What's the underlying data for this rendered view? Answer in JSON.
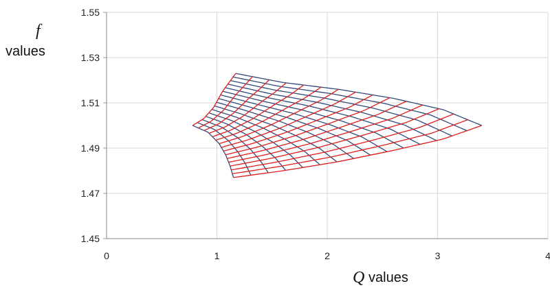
{
  "chart_data": {
    "type": "line",
    "title": "",
    "xlabel": {
      "variable": "Q",
      "text": "values"
    },
    "ylabel": {
      "variable": "f",
      "text": "values"
    },
    "xlim": [
      0,
      4
    ],
    "ylim": [
      1.45,
      1.55
    ],
    "x_ticks": [
      "0",
      "1",
      "2",
      "3",
      "4"
    ],
    "y_ticks": [
      "1.45",
      "1.47",
      "1.49",
      "1.51",
      "1.53",
      "1.55"
    ],
    "grid": true,
    "legend": "none",
    "colors": {
      "blue_family": "#2e4a7a",
      "red_family": "#e01b1b",
      "grid": "#d9d9d9",
      "axis": "#9a9a9a"
    },
    "mesh": {
      "description_of_series": "two families of curves forming a curvilinear mesh",
      "red_boundary_left": [
        [
          1.17,
          1.523
        ],
        [
          1.05,
          1.515
        ],
        [
          0.97,
          1.508
        ],
        [
          0.88,
          1.503
        ],
        [
          0.78,
          1.5
        ]
      ],
      "red_boundary_right": [
        [
          1.15,
          1.477
        ],
        [
          1.6,
          1.48
        ],
        [
          2.1,
          1.484
        ],
        [
          2.6,
          1.489
        ],
        [
          3.05,
          1.494
        ],
        [
          3.4,
          1.5
        ]
      ],
      "blue_boundary_top": [
        [
          1.17,
          1.523
        ],
        [
          1.6,
          1.519
        ],
        [
          2.1,
          1.516
        ],
        [
          2.6,
          1.512
        ],
        [
          3.05,
          1.507
        ],
        [
          3.4,
          1.5
        ]
      ],
      "blue_boundary_bottom": [
        [
          0.78,
          1.5
        ],
        [
          0.92,
          1.497
        ],
        [
          1.02,
          1.492
        ],
        [
          1.08,
          1.487
        ],
        [
          1.12,
          1.482
        ],
        [
          1.15,
          1.477
        ]
      ],
      "blue_count": 16,
      "red_count": 16
    }
  }
}
